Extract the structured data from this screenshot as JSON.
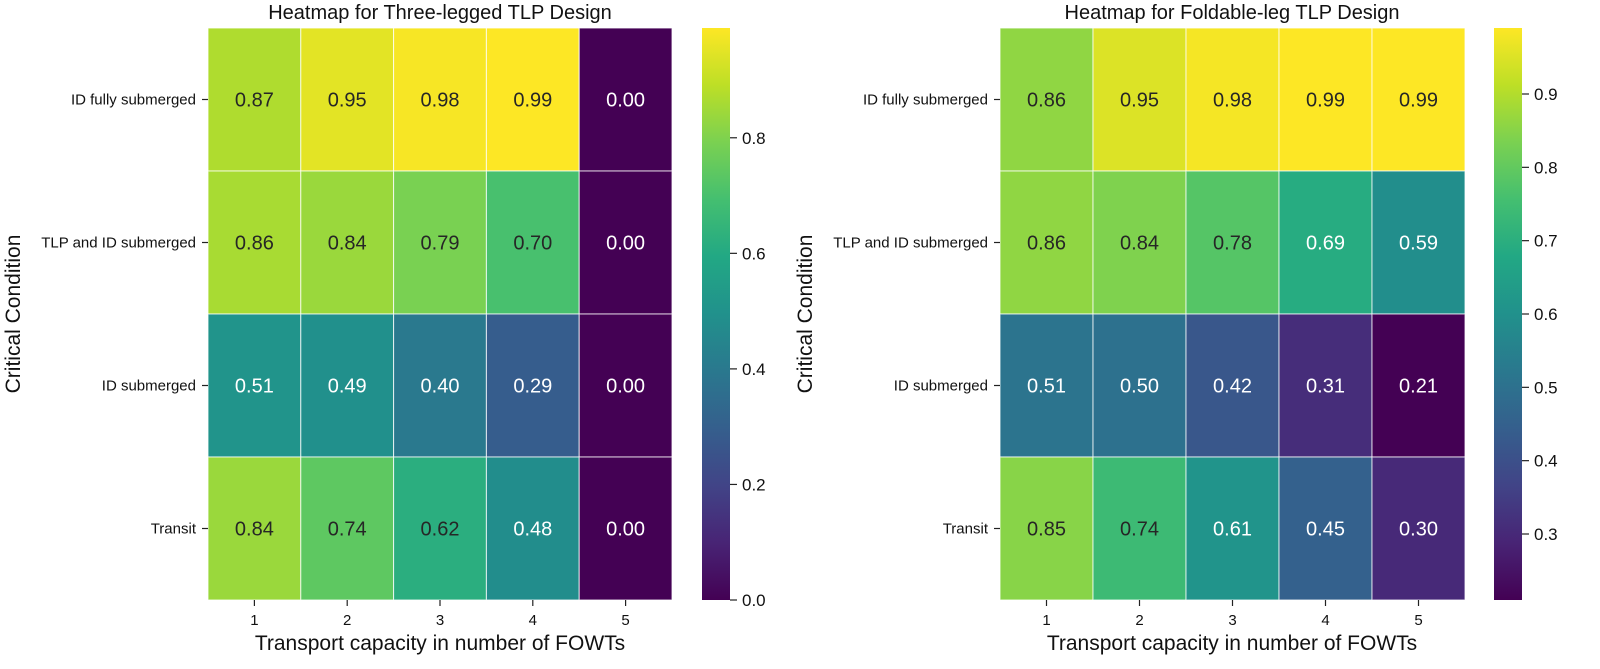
{
  "chart_data": [
    {
      "type": "heatmap",
      "title": "Heatmap for Three-legged TLP Design",
      "xlabel": "Transport capacity in number of FOWTs",
      "ylabel": "Critical Condition",
      "x_categories": [
        "1",
        "2",
        "3",
        "4",
        "5"
      ],
      "y_categories": [
        "ID fully submerged",
        "TLP and ID submerged",
        "ID submerged",
        "Transit"
      ],
      "values": [
        [
          0.87,
          0.95,
          0.98,
          0.99,
          0.0
        ],
        [
          0.86,
          0.84,
          0.79,
          0.7,
          0.0
        ],
        [
          0.51,
          0.49,
          0.4,
          0.29,
          0.0
        ],
        [
          0.84,
          0.74,
          0.62,
          0.48,
          0.0
        ]
      ],
      "colormap": "viridis",
      "color_range": [
        0.0,
        0.99
      ],
      "colorbar_ticks": [
        "0.0",
        "0.2",
        "0.4",
        "0.6",
        "0.8"
      ],
      "colorbar_tick_values": [
        0.0,
        0.2,
        0.4,
        0.6,
        0.8
      ]
    },
    {
      "type": "heatmap",
      "title": "Heatmap for Foldable-leg TLP Design",
      "xlabel": "Transport capacity in number of FOWTs",
      "ylabel": "Critical Condition",
      "x_categories": [
        "1",
        "2",
        "3",
        "4",
        "5"
      ],
      "y_categories": [
        "ID fully submerged",
        "TLP and ID submerged",
        "ID submerged",
        "Transit"
      ],
      "values": [
        [
          0.86,
          0.95,
          0.98,
          0.99,
          0.99
        ],
        [
          0.86,
          0.84,
          0.78,
          0.69,
          0.59
        ],
        [
          0.51,
          0.5,
          0.42,
          0.31,
          0.21
        ],
        [
          0.85,
          0.74,
          0.61,
          0.45,
          0.3
        ]
      ],
      "colormap": "viridis",
      "color_range": [
        0.21,
        0.99
      ],
      "colorbar_ticks": [
        "0.3",
        "0.4",
        "0.5",
        "0.6",
        "0.7",
        "0.8",
        "0.9"
      ],
      "colorbar_tick_values": [
        0.3,
        0.4,
        0.5,
        0.6,
        0.7,
        0.8,
        0.9
      ]
    }
  ]
}
